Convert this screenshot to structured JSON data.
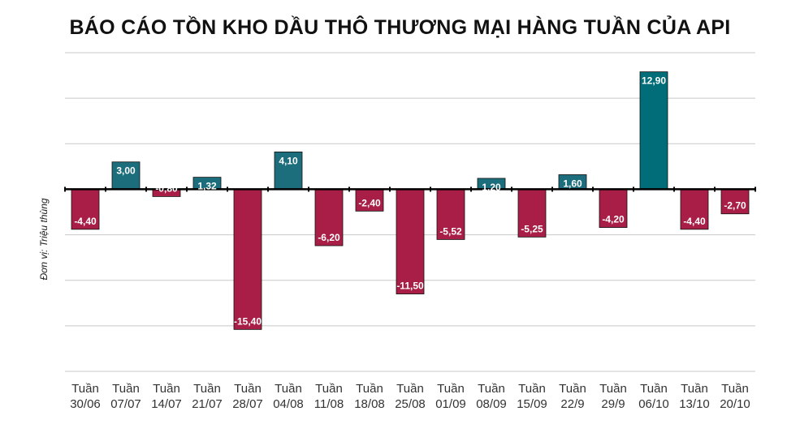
{
  "chart_data": {
    "type": "bar",
    "title": "BÁO CÁO TỒN KHO DẦU THÔ THƯƠNG MẠI HÀNG TUẦN CỦA API",
    "ylabel": "Đơn vị: Triệu thùng",
    "categories": [
      [
        "Tuần",
        "30/06"
      ],
      [
        "Tuần",
        "07/07"
      ],
      [
        "Tuần",
        "14/07"
      ],
      [
        "Tuần",
        "21/07"
      ],
      [
        "Tuần",
        "28/07"
      ],
      [
        "Tuần",
        "04/08"
      ],
      [
        "Tuần",
        "11/08"
      ],
      [
        "Tuần",
        "18/08"
      ],
      [
        "Tuần",
        "25/08"
      ],
      [
        "Tuần",
        "01/09"
      ],
      [
        "Tuần",
        "08/09"
      ],
      [
        "Tuần",
        "15/09"
      ],
      [
        "Tuần",
        "22/9"
      ],
      [
        "Tuần",
        "29/9"
      ],
      [
        "Tuần",
        "06/10"
      ],
      [
        "Tuần",
        "13/10"
      ],
      [
        "Tuần",
        "20/10"
      ]
    ],
    "values": [
      -4.4,
      3.0,
      -0.8,
      1.32,
      -15.4,
      4.1,
      -6.2,
      -2.4,
      -11.5,
      -5.52,
      1.2,
      -5.25,
      1.6,
      -4.2,
      12.9,
      -4.4,
      -2.7
    ],
    "labels": [
      "-4,40",
      "3,00",
      "-0,80",
      "1,32",
      "-15,40",
      "4,10",
      "-6,20",
      "-2,40",
      "-11,50",
      "-5,52",
      "1,20",
      "-5,25",
      "1,60",
      "-4,20",
      "12,90",
      "-4,40",
      "-2,70"
    ],
    "ylim": [
      -20,
      15
    ],
    "grid": true,
    "colors": {
      "positive": "#1d6e7c",
      "highlight": "#006d78",
      "negative": "#a81e46",
      "grid": "#c8c8c8",
      "axis": "#000000"
    }
  }
}
